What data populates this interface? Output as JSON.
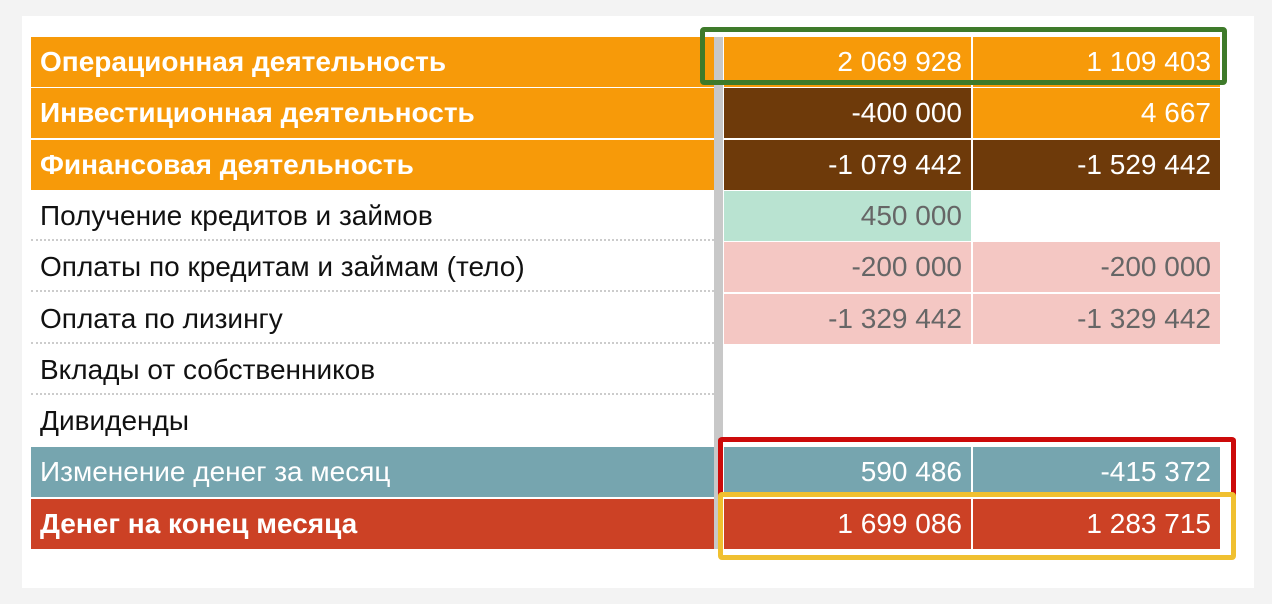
{
  "colors": {
    "orange": "#F79A09",
    "brown": "#6E3A0A",
    "green": "#B9E3D1",
    "pink": "#F4C7C3",
    "teal": "#76A5AF",
    "red": "#CC4125",
    "highlight_green": "#3E7A2A",
    "highlight_red": "#CC0A0A",
    "highlight_yellow": "#F0C030"
  },
  "rows": [
    {
      "label": "Операционная деятельность",
      "v1": "2 069 928",
      "v2": "1 109 403"
    },
    {
      "label": "Инвестиционная деятельность",
      "v1": "-400 000",
      "v2": "4 667"
    },
    {
      "label": "Финансовая деятельность",
      "v1": "-1 079 442",
      "v2": "-1 529 442"
    },
    {
      "label": "Получение кредитов и займов",
      "v1": "450 000",
      "v2": ""
    },
    {
      "label": "Оплаты по кредитам и займам (тело)",
      "v1": "-200 000",
      "v2": "-200 000"
    },
    {
      "label": "Оплата по лизингу",
      "v1": "-1 329 442",
      "v2": "-1 329 442"
    },
    {
      "label": "Вклады от собственников",
      "v1": "",
      "v2": ""
    },
    {
      "label": "Дивиденды",
      "v1": "",
      "v2": ""
    },
    {
      "label": "Изменение денег за месяц",
      "v1": "590 486",
      "v2": "-415 372"
    },
    {
      "label": "Денег на конец месяца",
      "v1": "1 699 086",
      "v2": "1 283 715"
    }
  ]
}
